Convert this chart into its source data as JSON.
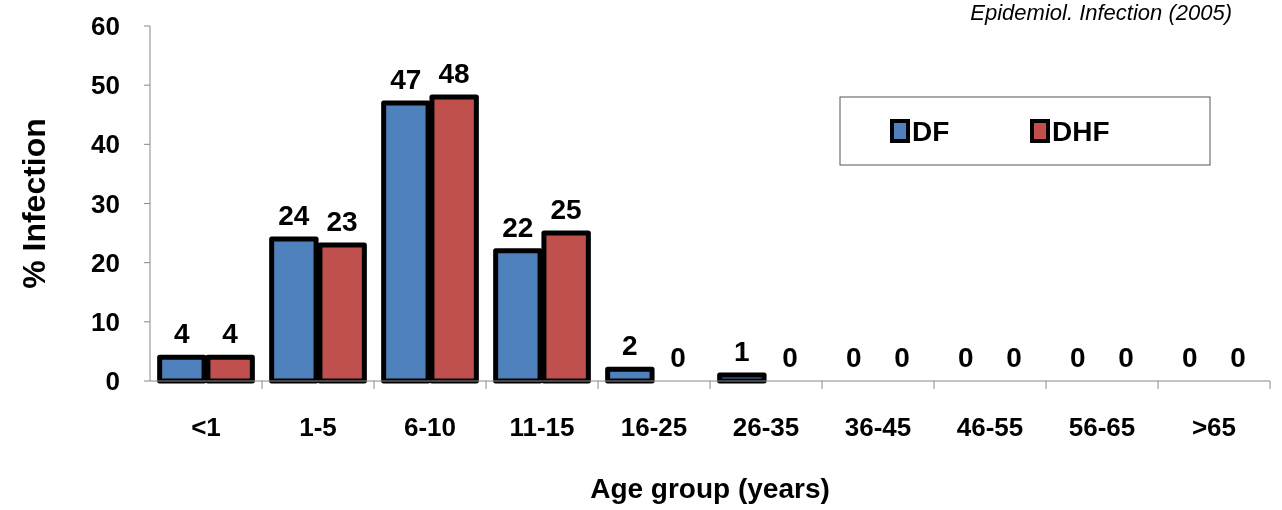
{
  "chart_data": {
    "type": "bar",
    "xlabel": "Age group (years)",
    "ylabel": "% Infection",
    "categories": [
      "<1",
      "1-5",
      "6-10",
      "11-15",
      "16-25",
      "26-35",
      "36-45",
      "46-55",
      "56-65",
      ">65"
    ],
    "series": [
      {
        "name": "DF",
        "color": "#4f81bd",
        "values": [
          4,
          24,
          47,
          22,
          2,
          1,
          0,
          0,
          0,
          0
        ]
      },
      {
        "name": "DHF",
        "color": "#c0504d",
        "values": [
          4,
          23,
          48,
          25,
          0,
          0,
          0,
          0,
          0,
          0
        ]
      }
    ],
    "ylim": [
      0,
      60
    ],
    "yticks": [
      0,
      10,
      20,
      30,
      40,
      50,
      60
    ],
    "grid": false,
    "legend": "top right",
    "data_labels": true,
    "annotations": [
      "Epidemiol. Infection (2005)"
    ]
  }
}
